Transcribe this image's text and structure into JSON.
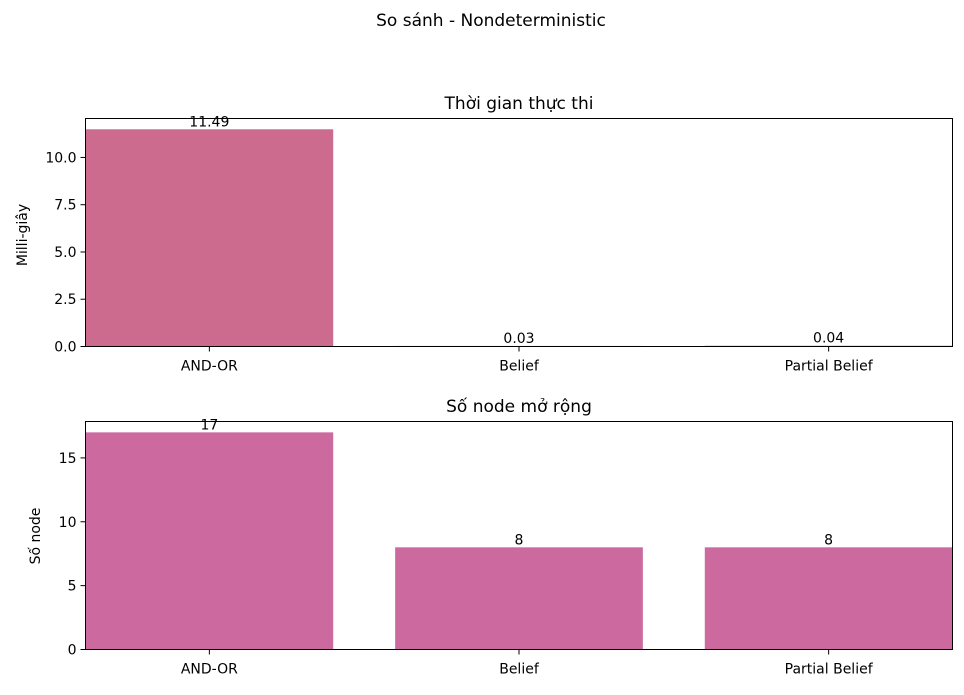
{
  "suptitle": "So sánh - Nondeterministic",
  "chart_data": [
    {
      "type": "bar",
      "title": "Thời gian thực thi",
      "xlabel": "",
      "ylabel": "Milli-giây",
      "categories": [
        "AND-OR",
        "Belief",
        "Partial Belief"
      ],
      "values": [
        11.49,
        0.03,
        0.04
      ],
      "data_labels": [
        "11.49",
        "0.03",
        "0.04"
      ],
      "yticks": [
        0,
        2.5,
        5,
        7.5,
        10
      ],
      "ytick_labels": [
        "0.0",
        "2.5",
        "5.0",
        "7.5",
        "10.0"
      ],
      "ylim": [
        0,
        12.06
      ],
      "color": "#cc6b8e",
      "grid": false,
      "legend": "none"
    },
    {
      "type": "bar",
      "title": "Số node mở rộng",
      "xlabel": "",
      "ylabel": "Số node",
      "categories": [
        "AND-OR",
        "Belief",
        "Partial Belief"
      ],
      "values": [
        17,
        8,
        8
      ],
      "data_labels": [
        "17",
        "8",
        "8"
      ],
      "yticks": [
        0,
        5,
        10,
        15
      ],
      "ytick_labels": [
        "0",
        "5",
        "10",
        "15"
      ],
      "ylim": [
        0,
        17.85
      ],
      "color": "#cc6aa0",
      "grid": false,
      "legend": "none"
    }
  ]
}
